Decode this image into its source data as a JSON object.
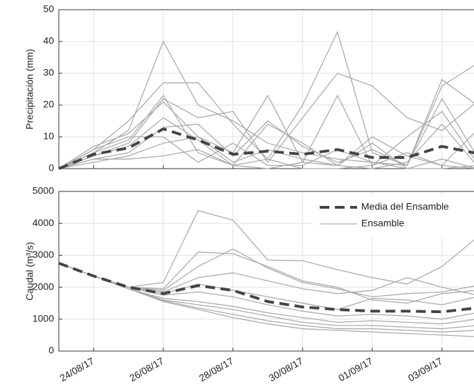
{
  "chart_data": [
    {
      "type": "line",
      "ylabel": "Precipitación (mm)",
      "x": [
        "23/08/17",
        "24/08/17",
        "25/08/17",
        "26/08/17",
        "27/08/17",
        "28/08/17",
        "29/08/17",
        "30/08/17",
        "31/08/17",
        "01/09/17",
        "02/09/17",
        "03/09/17",
        "04/09/17"
      ],
      "xlim": [
        "23/08/17",
        "04/09/17"
      ],
      "xticks": [
        "24/08/17",
        "26/08/17",
        "28/08/17",
        "30/08/17",
        "01/09/17",
        "03/09/17"
      ],
      "ylim": [
        0,
        50
      ],
      "yticks": [
        0,
        10,
        20,
        30,
        40,
        50
      ],
      "grid": true,
      "series": [
        {
          "color": "#aaaaaa",
          "members": [
            [
              0,
              5,
              12,
              40,
              20,
              15,
              8,
              5,
              3,
              2,
              1,
              28,
              20
            ],
            [
              0,
              6,
              15,
              27,
              27,
              14,
              3,
              20,
              43,
              5,
              1,
              26,
              33
            ],
            [
              0,
              4,
              8,
              22,
              16,
              18,
              2,
              16,
              30,
              26,
              16,
              12,
              21
            ],
            [
              0,
              7,
              11,
              21,
              10,
              5,
              23,
              2,
              23,
              1,
              10,
              18,
              2
            ],
            [
              0,
              3,
              5,
              13,
              14,
              4,
              15,
              7,
              2,
              6,
              1,
              22,
              4
            ],
            [
              0,
              5,
              9,
              23,
              5,
              1,
              14,
              8,
              1,
              10,
              4,
              1,
              12
            ],
            [
              0,
              2,
              4,
              8,
              10,
              2,
              6,
              3,
              1,
              0,
              2,
              14,
              1
            ],
            [
              0,
              6,
              10,
              10,
              2,
              8,
              1,
              1,
              6,
              2,
              0,
              0,
              1
            ],
            [
              0,
              3,
              3,
              4,
              6,
              1,
              3,
              0,
              0,
              1,
              5,
              1,
              0
            ],
            [
              0,
              4,
              7,
              16,
              9,
              1,
              0,
              2,
              1,
              8,
              0,
              3,
              0
            ]
          ]
        },
        {
          "color": "#444444",
          "dashed": true,
          "values": [
            0,
            4.5,
            6.5,
            12.5,
            9,
            4.5,
            5.5,
            4.5,
            6,
            3.5,
            3.5,
            7,
            4.8
          ]
        }
      ]
    },
    {
      "type": "line",
      "ylabel": "Caudal (m³/s)",
      "x": [
        "23/08/17",
        "24/08/17",
        "25/08/17",
        "26/08/17",
        "27/08/17",
        "28/08/17",
        "29/08/17",
        "30/08/17",
        "31/08/17",
        "01/09/17",
        "02/09/17",
        "03/09/17",
        "04/09/17"
      ],
      "xlim": [
        "23/08/17",
        "04/09/17"
      ],
      "xticks": [
        "24/08/17",
        "26/08/17",
        "28/08/17",
        "30/08/17",
        "01/09/17",
        "03/09/17"
      ],
      "ylim": [
        0,
        5000
      ],
      "yticks": [
        0,
        1000,
        2000,
        3000,
        4000,
        5000
      ],
      "grid": true,
      "legend": "upper right",
      "series": [
        {
          "name": "Ensamble",
          "color": "#aaaaaa",
          "members": [
            [
              2750,
              2350,
              2000,
              2150,
              4400,
              4100,
              2850,
              2830,
              2550,
              2300,
              2100,
              2650,
              3550
            ],
            [
              2750,
              2350,
              2000,
              1950,
              3100,
              3050,
              2650,
              2200,
              2000,
              1600,
              1500,
              1800,
              1900
            ],
            [
              2750,
              2350,
              2000,
              1900,
              2650,
              3200,
              2600,
              2150,
              1950,
              1700,
              1800,
              1850,
              2050
            ],
            [
              2750,
              2350,
              2000,
              1850,
              2300,
              2450,
              2200,
              1950,
              1800,
              1900,
              2300,
              2000,
              1750
            ],
            [
              2750,
              2350,
              2000,
              1800,
              2100,
              1900,
              1700,
              1500,
              1300,
              1650,
              1600,
              1450,
              1700
            ],
            [
              2750,
              2350,
              2000,
              1750,
              1850,
              1700,
              1450,
              1250,
              1100,
              1150,
              1100,
              1000,
              1200
            ],
            [
              2750,
              2350,
              1950,
              1650,
              1550,
              1400,
              1200,
              1050,
              900,
              950,
              900,
              850,
              1000
            ],
            [
              2750,
              2350,
              1950,
              1600,
              1450,
              1300,
              1100,
              900,
              800,
              800,
              750,
              700,
              800
            ],
            [
              2750,
              2350,
              1950,
              1580,
              1350,
              1150,
              950,
              800,
              700,
              700,
              650,
              600,
              650
            ],
            [
              2750,
              2350,
              1950,
              1550,
              1300,
              1050,
              850,
              700,
              650,
              600,
              550,
              500,
              450
            ]
          ]
        },
        {
          "name": "Media del Ensamble",
          "color": "#444444",
          "dashed": true,
          "values": [
            2750,
            2350,
            2000,
            1800,
            2050,
            1900,
            1550,
            1380,
            1300,
            1250,
            1250,
            1230,
            1350
          ]
        }
      ]
    }
  ]
}
